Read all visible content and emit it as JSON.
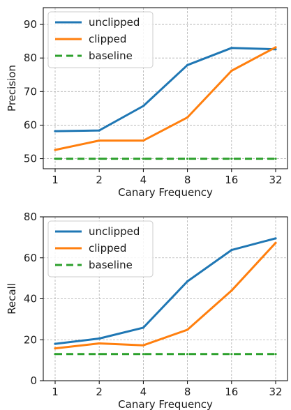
{
  "chart_data": [
    {
      "type": "line",
      "xlabel": "Canary Frequency",
      "ylabel": "Precision",
      "x": [
        1,
        2,
        4,
        8,
        16,
        32
      ],
      "xticks": [
        "1",
        "2",
        "4",
        "8",
        "16",
        "32"
      ],
      "xscale": "log2",
      "ylim": [
        47,
        95
      ],
      "yticks": [
        50,
        60,
        70,
        80,
        90
      ],
      "grid": true,
      "legend_position": "upper-left",
      "series": [
        {
          "name": "unclipped",
          "color": "#1f77b4",
          "style": "solid",
          "values": [
            58.2,
            58.4,
            65.7,
            77.9,
            83.0,
            82.6
          ]
        },
        {
          "name": "clipped",
          "color": "#ff7f0e",
          "style": "solid",
          "values": [
            52.6,
            55.4,
            55.4,
            62.3,
            76.2,
            83.2
          ]
        },
        {
          "name": "baseline",
          "color": "#2ca02c",
          "style": "dashed",
          "values": [
            50,
            50,
            50,
            50,
            50,
            50
          ]
        }
      ]
    },
    {
      "type": "line",
      "xlabel": "Canary Frequency",
      "ylabel": "Recall",
      "x": [
        1,
        2,
        4,
        8,
        16,
        32
      ],
      "xticks": [
        "1",
        "2",
        "4",
        "8",
        "16",
        "32"
      ],
      "xscale": "log2",
      "ylim": [
        0,
        80
      ],
      "yticks": [
        0,
        20,
        40,
        60,
        80
      ],
      "grid": true,
      "legend_position": "upper-left",
      "series": [
        {
          "name": "unclipped",
          "color": "#1f77b4",
          "style": "solid",
          "values": [
            18.0,
            20.6,
            25.9,
            48.5,
            63.8,
            69.5
          ]
        },
        {
          "name": "clipped",
          "color": "#ff7f0e",
          "style": "solid",
          "values": [
            15.8,
            18.2,
            17.3,
            24.9,
            44.0,
            67.3
          ]
        },
        {
          "name": "baseline",
          "color": "#2ca02c",
          "style": "dashed",
          "values": [
            13,
            13,
            13,
            13,
            13,
            13
          ]
        }
      ]
    }
  ]
}
